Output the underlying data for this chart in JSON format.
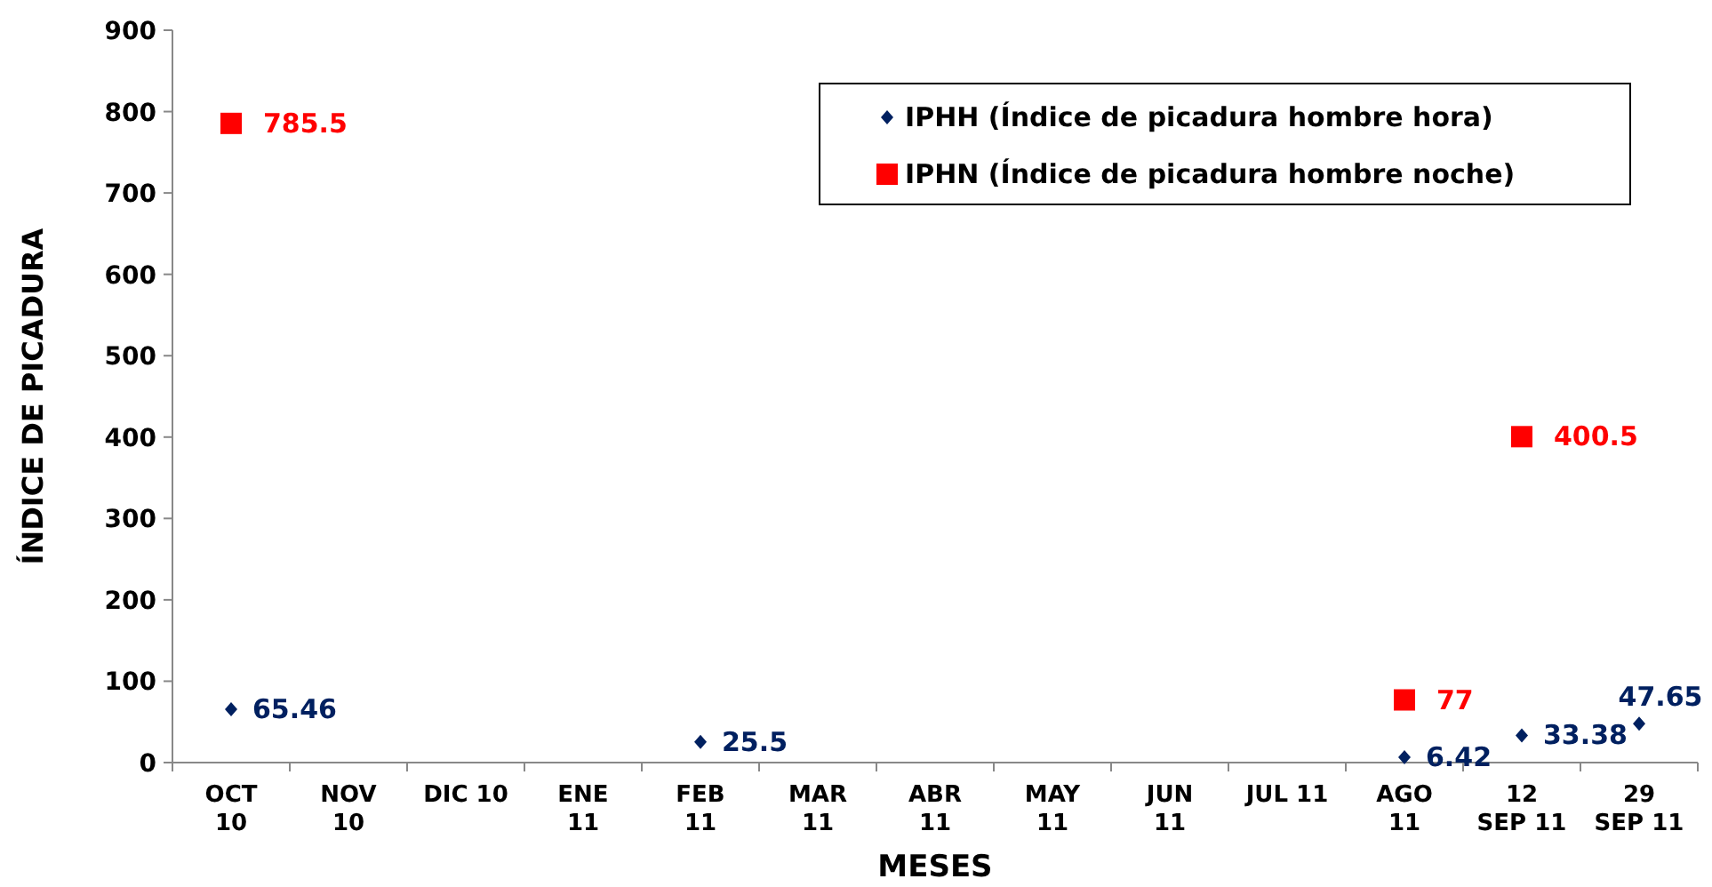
{
  "chart_data": {
    "type": "scatter",
    "xlabel": "MESES",
    "ylabel": "ÍNDICE DE PICADURA",
    "categories": [
      "OCT\n10",
      "NOV\n10",
      "DIC 10",
      "ENE\n11",
      "FEB\n11",
      "MAR\n11",
      "ABR\n11",
      "MAY\n11",
      "JUN\n11",
      "JUL 11",
      "AGO\n11",
      "12\nSEP 11",
      "29\nSEP 11"
    ],
    "series": [
      {
        "name": "IPHH (Índice de picadura hombre hora)",
        "color": "#002060",
        "marker": "diamond",
        "values": [
          65.46,
          null,
          null,
          null,
          25.5,
          null,
          null,
          null,
          null,
          null,
          6.42,
          33.38,
          47.65
        ]
      },
      {
        "name": "IPHN (Índice de picadura hombre noche)",
        "color": "#ff0000",
        "marker": "square",
        "values": [
          785.5,
          null,
          null,
          null,
          null,
          null,
          null,
          null,
          null,
          null,
          77,
          400.5,
          null
        ]
      }
    ],
    "ylim": [
      0,
      900
    ],
    "yticks": [
      0,
      100,
      200,
      300,
      400,
      500,
      600,
      700,
      800,
      900
    ],
    "grid": false,
    "legend": "top right",
    "data_labels": true
  }
}
